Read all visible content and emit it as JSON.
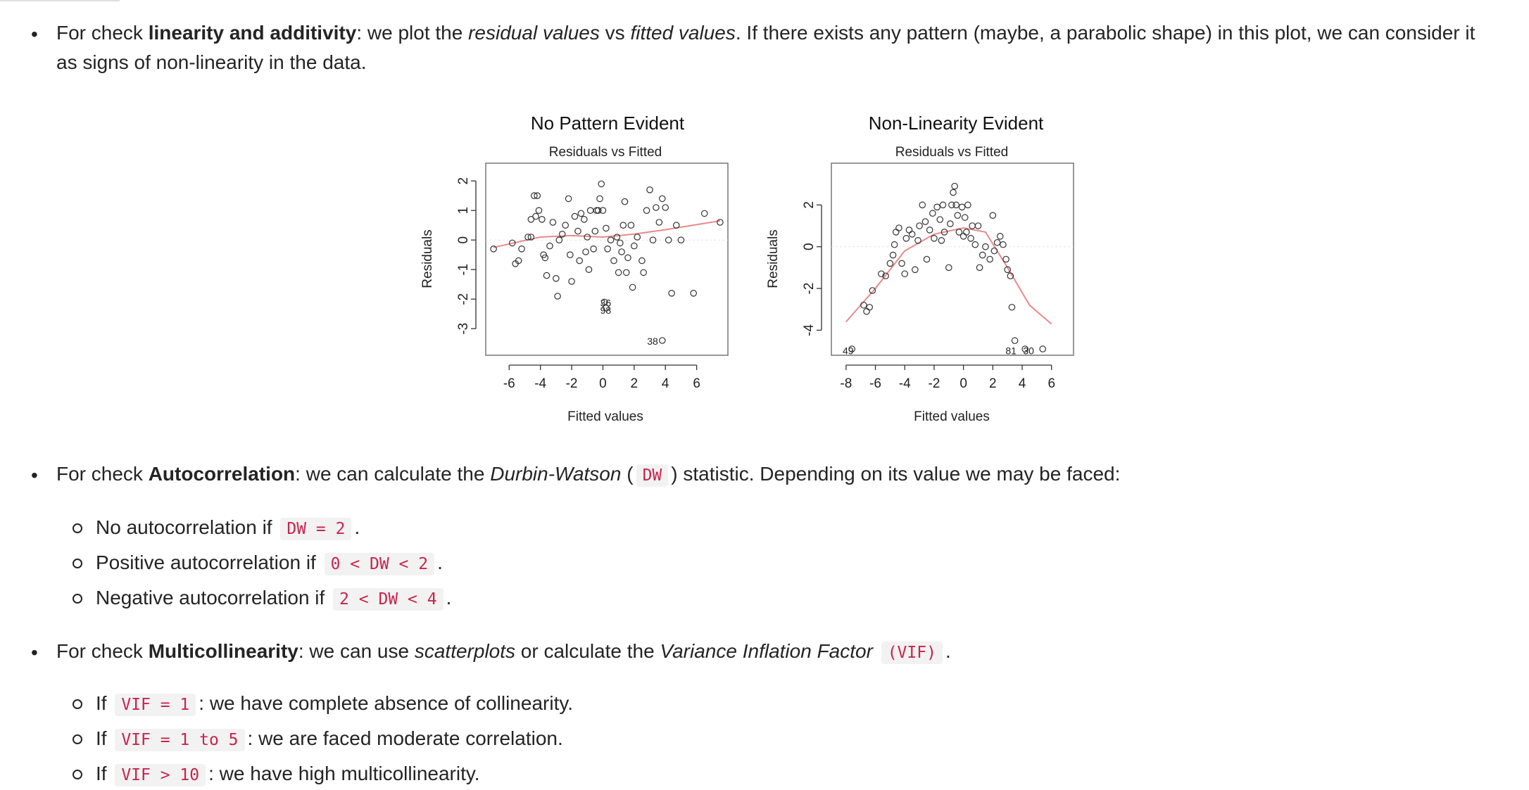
{
  "sections": {
    "linearity": {
      "pre": "For check ",
      "bold": "linearity and additivity",
      "mid1": ": we plot the ",
      "it1": "residual values",
      "mid2": " vs ",
      "it2": "fitted values",
      "post": ". If there exists any pattern (maybe, a parabolic shape) in this plot, we can consider it",
      "line2": "as signs of non-linearity in the data."
    },
    "autocorrelation": {
      "pre": "For check ",
      "bold": "Autocorrelation",
      "mid": ": we can calculate the ",
      "it": "Durbin-Watson",
      "open": " (",
      "code": "DW",
      "post": ") statistic. Depending on its value we may be faced:",
      "items": [
        {
          "text": "No autocorrelation if",
          "code": "DW = 2",
          "post": "."
        },
        {
          "text": "Positive autocorrelation if",
          "code": "0 < DW < 2",
          "post": "."
        },
        {
          "text": "Negative autocorrelation if",
          "code": "2 < DW < 4",
          "post": "."
        }
      ]
    },
    "multicollinearity": {
      "pre": "For check ",
      "bold": "Multicollinearity",
      "mid1": ": we can use ",
      "it1": "scatterplots",
      "mid2": " or calculate the ",
      "it2": "Variance Inflation Factor",
      "code": "(VIF)",
      "post": ".",
      "items": [
        {
          "text": "If",
          "code": "VIF = 1",
          "post": ": we have complete absence of collinearity."
        },
        {
          "text": "If",
          "code": "VIF = 1 to 5",
          "post": ": we are faced moderate correlation."
        },
        {
          "text": "If",
          "code": "VIF > 10",
          "post": ": we have high multicollinearity."
        }
      ]
    }
  },
  "chart_data": [
    {
      "type": "scatter",
      "title": "No Pattern Evident",
      "subtitle": "Residuals vs Fitted",
      "xlabel": "Fitted values",
      "ylabel": "Residuals",
      "xticks": [
        -6,
        -4,
        -2,
        0,
        2,
        4,
        6
      ],
      "yticks": [
        -3,
        -2,
        -1,
        0,
        1,
        2
      ],
      "xlim": [
        -7.5,
        8
      ],
      "ylim": [
        -3.9,
        2.6
      ],
      "points": [
        [
          -7.0,
          -0.3
        ],
        [
          -5.8,
          -0.1
        ],
        [
          -5.6,
          -0.8
        ],
        [
          -5.4,
          -0.7
        ],
        [
          -5.2,
          -0.3
        ],
        [
          -4.8,
          0.1
        ],
        [
          -4.6,
          0.1
        ],
        [
          -4.4,
          1.5
        ],
        [
          -4.2,
          1.5
        ],
        [
          -4.6,
          0.7
        ],
        [
          -4.3,
          0.8
        ],
        [
          -4.1,
          1.0
        ],
        [
          -3.9,
          0.7
        ],
        [
          -3.8,
          -0.5
        ],
        [
          -3.7,
          -0.6
        ],
        [
          -3.6,
          -1.2
        ],
        [
          -3.4,
          -0.2
        ],
        [
          -3.2,
          0.6
        ],
        [
          -3.0,
          -1.3
        ],
        [
          -2.9,
          -1.9
        ],
        [
          -2.8,
          0.0
        ],
        [
          -2.6,
          0.2
        ],
        [
          -2.4,
          0.5
        ],
        [
          -2.2,
          1.4
        ],
        [
          -2.1,
          -0.5
        ],
        [
          -2.0,
          -1.4
        ],
        [
          -1.8,
          0.8
        ],
        [
          -1.6,
          0.3
        ],
        [
          -1.5,
          -0.7
        ],
        [
          -1.4,
          0.9
        ],
        [
          -1.2,
          0.7
        ],
        [
          -1.1,
          -0.4
        ],
        [
          -1.0,
          0.1
        ],
        [
          -0.9,
          -1.0
        ],
        [
          -0.8,
          1.0
        ],
        [
          -0.6,
          -0.3
        ],
        [
          -0.5,
          0.3
        ],
        [
          -0.4,
          1.0
        ],
        [
          -0.3,
          1.0
        ],
        [
          -0.2,
          1.4
        ],
        [
          -0.1,
          1.9
        ],
        [
          0.0,
          1.0
        ],
        [
          0.2,
          0.4
        ],
        [
          0.3,
          -0.3
        ],
        [
          0.5,
          0.0
        ],
        [
          0.7,
          -0.7
        ],
        [
          0.9,
          0.1
        ],
        [
          1.0,
          -1.1
        ],
        [
          1.1,
          -0.1
        ],
        [
          1.2,
          -0.4
        ],
        [
          1.3,
          0.5
        ],
        [
          1.4,
          1.3
        ],
        [
          1.5,
          -1.1
        ],
        [
          1.6,
          -0.6
        ],
        [
          1.8,
          0.5
        ],
        [
          1.9,
          -1.6
        ],
        [
          2.0,
          -0.2
        ],
        [
          2.2,
          0.1
        ],
        [
          2.5,
          -0.7
        ],
        [
          2.6,
          -1.1
        ],
        [
          2.8,
          1.0
        ],
        [
          3.0,
          1.7
        ],
        [
          3.2,
          0.0
        ],
        [
          3.4,
          1.1
        ],
        [
          3.6,
          0.6
        ],
        [
          3.8,
          1.4
        ],
        [
          4.0,
          1.1
        ],
        [
          4.2,
          0.0
        ],
        [
          4.4,
          -1.8
        ],
        [
          4.7,
          0.5
        ],
        [
          5.0,
          0.0
        ],
        [
          5.8,
          -1.8
        ],
        [
          6.5,
          0.9
        ],
        [
          7.5,
          0.6
        ],
        [
          0.1,
          -2.1
        ],
        [
          0.2,
          -2.3
        ],
        [
          3.8,
          -3.4
        ]
      ],
      "labels": [
        {
          "text": "36",
          "x": 0.8,
          "y": -2.1
        },
        {
          "text": "98",
          "x": 0.8,
          "y": -2.35
        },
        {
          "text": "38",
          "x": 3.8,
          "y": -3.4
        }
      ],
      "smooth": [
        [
          -7.0,
          -0.25
        ],
        [
          -4.0,
          0.1
        ],
        [
          -2.0,
          0.15
        ],
        [
          0.0,
          0.1
        ],
        [
          2.0,
          0.2
        ],
        [
          4.0,
          0.35
        ],
        [
          7.5,
          0.65
        ]
      ]
    },
    {
      "type": "scatter",
      "title": "Non-Linearity Evident",
      "subtitle": "Residuals vs Fitted",
      "xlabel": "Fitted values",
      "ylabel": "Residuals",
      "xticks": [
        -8,
        -6,
        -4,
        -2,
        0,
        2,
        4,
        6
      ],
      "yticks": [
        -4,
        -2,
        0,
        2
      ],
      "xlim": [
        -9,
        7.5
      ],
      "ylim": [
        -5.2,
        4.0
      ],
      "points": [
        [
          -6.8,
          -2.8
        ],
        [
          -6.6,
          -3.1
        ],
        [
          -6.4,
          -2.9
        ],
        [
          -6.2,
          -2.1
        ],
        [
          -5.6,
          -1.3
        ],
        [
          -5.3,
          -1.4
        ],
        [
          -5.0,
          -0.8
        ],
        [
          -4.8,
          -0.4
        ],
        [
          -4.7,
          0.1
        ],
        [
          -4.6,
          0.7
        ],
        [
          -4.4,
          0.9
        ],
        [
          -4.2,
          -0.8
        ],
        [
          -4.0,
          -1.3
        ],
        [
          -3.9,
          0.4
        ],
        [
          -3.7,
          0.8
        ],
        [
          -3.5,
          0.6
        ],
        [
          -3.3,
          -1.1
        ],
        [
          -3.1,
          0.3
        ],
        [
          -3.0,
          1.0
        ],
        [
          -2.8,
          2.0
        ],
        [
          -2.6,
          1.2
        ],
        [
          -2.5,
          -0.6
        ],
        [
          -2.3,
          0.8
        ],
        [
          -2.1,
          1.6
        ],
        [
          -2.0,
          0.4
        ],
        [
          -1.8,
          1.9
        ],
        [
          -1.6,
          1.3
        ],
        [
          -1.5,
          0.3
        ],
        [
          -1.4,
          2.0
        ],
        [
          -1.3,
          0.7
        ],
        [
          -1.0,
          -1.0
        ],
        [
          -0.9,
          1.1
        ],
        [
          -0.8,
          2.0
        ],
        [
          -0.7,
          2.6
        ],
        [
          -0.6,
          2.9
        ],
        [
          -0.5,
          2.0
        ],
        [
          -0.4,
          1.5
        ],
        [
          -0.3,
          0.7
        ],
        [
          -0.1,
          1.9
        ],
        [
          0.0,
          0.5
        ],
        [
          0.1,
          1.4
        ],
        [
          0.2,
          0.7
        ],
        [
          0.3,
          2.0
        ],
        [
          0.5,
          0.4
        ],
        [
          0.6,
          1.0
        ],
        [
          0.8,
          0.1
        ],
        [
          1.0,
          1.0
        ],
        [
          1.1,
          -1.0
        ],
        [
          1.3,
          -0.4
        ],
        [
          1.5,
          0.0
        ],
        [
          1.8,
          -0.6
        ],
        [
          2.0,
          1.5
        ],
        [
          2.1,
          -0.2
        ],
        [
          2.3,
          0.2
        ],
        [
          2.5,
          0.5
        ],
        [
          2.7,
          0.1
        ],
        [
          2.9,
          -0.6
        ],
        [
          3.0,
          -1.1
        ],
        [
          3.2,
          -1.4
        ],
        [
          3.3,
          -2.9
        ],
        [
          3.5,
          -4.5
        ],
        [
          -7.6,
          -4.9
        ],
        [
          4.2,
          -4.9
        ],
        [
          5.4,
          -4.9
        ]
      ],
      "labels": [
        {
          "text": "49",
          "x": -7.2,
          "y": -4.95
        },
        {
          "text": "81",
          "x": 3.9,
          "y": -4.95
        },
        {
          "text": "30",
          "x": 5.1,
          "y": -4.95
        }
      ],
      "smooth": [
        [
          -8.0,
          -3.6
        ],
        [
          -6.0,
          -2.0
        ],
        [
          -4.0,
          -0.2
        ],
        [
          -2.0,
          0.6
        ],
        [
          0.0,
          0.9
        ],
        [
          1.5,
          0.7
        ],
        [
          3.0,
          -1.0
        ],
        [
          4.5,
          -2.8
        ],
        [
          6.0,
          -3.7
        ]
      ]
    }
  ]
}
